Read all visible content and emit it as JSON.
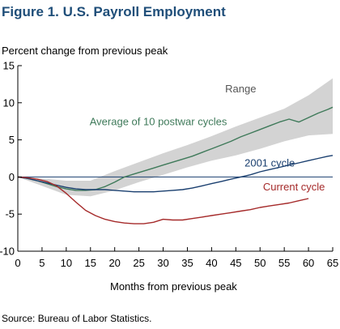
{
  "title": "Figure 1. U.S. Payroll Employment",
  "ylabel": "Percent change from previous peak",
  "xlabel": "Months from previous peak",
  "source": "Source: Bureau of Labor Statistics.",
  "colors": {
    "range": "#d3d3d3",
    "average": "#3f7a5a",
    "cycle_2001": "#1a3f6f",
    "current": "#a52a2a",
    "zero_line": "#1a3f6f",
    "axis": "#000000"
  },
  "chart_data": {
    "type": "line",
    "xlim": [
      0,
      65
    ],
    "ylim": [
      -10,
      15
    ],
    "xticks": [
      0,
      5,
      10,
      15,
      20,
      25,
      30,
      35,
      40,
      45,
      50,
      55,
      60,
      65
    ],
    "yticks": [
      -10,
      -5,
      0,
      5,
      10,
      15
    ],
    "grid": false,
    "range_band": {
      "name": "Range",
      "x": [
        0,
        5,
        10,
        15,
        20,
        25,
        30,
        35,
        40,
        45,
        50,
        55,
        60,
        65
      ],
      "upper": [
        0,
        -0.2,
        -0.5,
        -0.5,
        0.8,
        2.0,
        3.2,
        4.3,
        5.5,
        6.8,
        8.0,
        9.2,
        11.0,
        13.3
      ],
      "lower": [
        0,
        -1.2,
        -2.4,
        -2.6,
        -1.8,
        -0.7,
        0.3,
        1.3,
        2.2,
        2.9,
        3.8,
        4.8,
        5.6,
        5.8
      ]
    },
    "series": [
      {
        "name": "Average of 10 postwar cycles",
        "color": "#3f7a5a",
        "x": [
          0,
          2,
          4,
          6,
          8,
          10,
          12,
          14,
          16,
          18,
          20,
          22,
          24,
          26,
          28,
          30,
          32,
          34,
          36,
          38,
          40,
          42,
          44,
          46,
          48,
          50,
          52,
          54,
          56,
          58,
          60,
          62,
          64,
          65
        ],
        "y": [
          0,
          -0.2,
          -0.5,
          -0.9,
          -1.3,
          -1.6,
          -1.8,
          -1.8,
          -1.7,
          -1.3,
          -0.7,
          0.0,
          0.4,
          0.8,
          1.2,
          1.6,
          2.0,
          2.4,
          2.8,
          3.3,
          3.8,
          4.3,
          4.8,
          5.4,
          5.9,
          6.4,
          6.9,
          7.4,
          7.8,
          7.4,
          8.0,
          8.6,
          9.1,
          9.4
        ]
      },
      {
        "name": "2001 cycle",
        "color": "#1a3f6f",
        "x": [
          0,
          2,
          4,
          6,
          8,
          10,
          12,
          14,
          16,
          18,
          20,
          22,
          24,
          26,
          28,
          30,
          32,
          34,
          36,
          38,
          40,
          42,
          44,
          46,
          48,
          50,
          52,
          54,
          56,
          58,
          60,
          62,
          64,
          65
        ],
        "y": [
          0,
          -0.2,
          -0.5,
          -0.8,
          -1.1,
          -1.4,
          -1.6,
          -1.7,
          -1.7,
          -1.7,
          -1.8,
          -1.9,
          -2.0,
          -2.0,
          -2.0,
          -1.9,
          -1.8,
          -1.7,
          -1.5,
          -1.2,
          -0.9,
          -0.6,
          -0.3,
          0.0,
          0.3,
          0.7,
          1.0,
          1.3,
          1.6,
          1.9,
          2.2,
          2.5,
          2.8,
          2.9
        ]
      },
      {
        "name": "Current cycle",
        "color": "#a52a2a",
        "x": [
          0,
          2,
          4,
          6,
          8,
          10,
          12,
          14,
          16,
          18,
          20,
          22,
          24,
          26,
          28,
          30,
          32,
          34,
          36,
          38,
          40,
          42,
          44,
          46,
          48,
          50,
          52,
          54,
          56,
          58,
          60
        ],
        "y": [
          0,
          -0.1,
          -0.3,
          -0.6,
          -1.2,
          -2.2,
          -3.4,
          -4.5,
          -5.2,
          -5.7,
          -6.0,
          -6.2,
          -6.3,
          -6.3,
          -6.1,
          -5.7,
          -5.8,
          -5.8,
          -5.6,
          -5.4,
          -5.2,
          -5.0,
          -4.8,
          -4.6,
          -4.4,
          -4.1,
          -3.9,
          -3.7,
          -3.5,
          -3.2,
          -2.9
        ]
      }
    ],
    "annotations": [
      {
        "text": "Range",
        "x": 46,
        "y": 11.4,
        "color": "#555555"
      },
      {
        "text": "Average of 10 postwar cycles",
        "x": 29,
        "y": 7.0,
        "color": "#3f7a5a"
      },
      {
        "text": "2001 cycle",
        "x": 52,
        "y": 1.4,
        "color": "#1a3f6f"
      },
      {
        "text": "Current cycle",
        "x": 57,
        "y": -1.8,
        "color": "#a52a2a"
      }
    ]
  }
}
